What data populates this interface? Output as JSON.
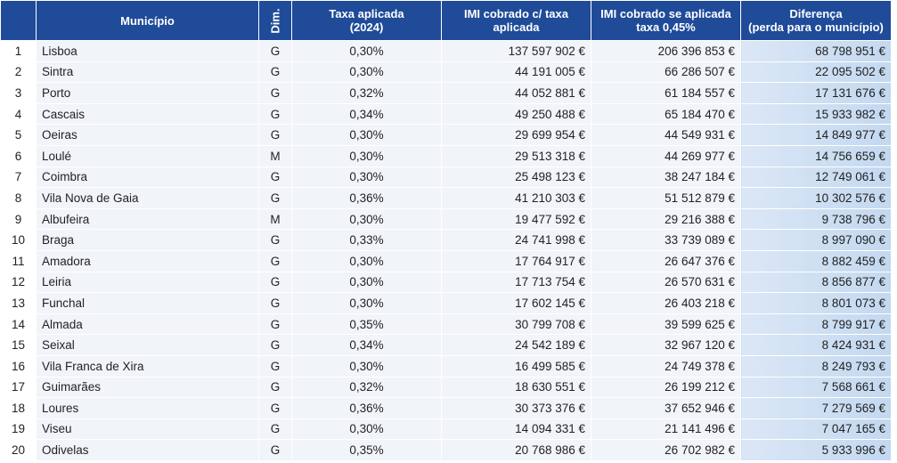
{
  "table": {
    "headers": [
      [
        "Município"
      ],
      [
        "Dim."
      ],
      [
        "Taxa aplicada",
        "(2024)"
      ],
      [
        "IMI cobrado c/ taxa",
        "aplicada"
      ],
      [
        "IMI cobrado se aplicada",
        "taxa 0,45%"
      ],
      [
        "Diferença",
        "(perda para o município)"
      ]
    ],
    "rows": [
      [
        1,
        "Lisboa",
        "G",
        "0,30%",
        "137 597 902 €",
        "206 396 853 €",
        "68 798 951 €"
      ],
      [
        2,
        "Sintra",
        "G",
        "0,30%",
        "44 191 005 €",
        "66 286 507 €",
        "22 095 502 €"
      ],
      [
        3,
        "Porto",
        "G",
        "0,32%",
        "44 052 881 €",
        "61 184 557 €",
        "17 131 676 €"
      ],
      [
        4,
        "Cascais",
        "G",
        "0,34%",
        "49 250 488 €",
        "65 184 470 €",
        "15 933 982 €"
      ],
      [
        5,
        "Oeiras",
        "G",
        "0,30%",
        "29 699 954 €",
        "44 549 931 €",
        "14 849 977 €"
      ],
      [
        6,
        "Loulé",
        "M",
        "0,30%",
        "29 513 318 €",
        "44 269 977 €",
        "14 756 659 €"
      ],
      [
        7,
        "Coimbra",
        "G",
        "0,30%",
        "25 498 123 €",
        "38 247 184 €",
        "12 749 061 €"
      ],
      [
        8,
        "Vila Nova de Gaia",
        "G",
        "0,36%",
        "41 210 303 €",
        "51 512 879 €",
        "10 302 576 €"
      ],
      [
        9,
        "Albufeira",
        "M",
        "0,30%",
        "19 477 592 €",
        "29 216 388 €",
        "9 738 796 €"
      ],
      [
        10,
        "Braga",
        "G",
        "0,33%",
        "24 741 998 €",
        "33 739 089 €",
        "8 997 090 €"
      ],
      [
        11,
        "Amadora",
        "G",
        "0,30%",
        "17 764 917 €",
        "26 647 376 €",
        "8 882 459 €"
      ],
      [
        12,
        "Leiria",
        "G",
        "0,30%",
        "17 713 754 €",
        "26 570 631 €",
        "8 856 877 €"
      ],
      [
        13,
        "Funchal",
        "G",
        "0,30%",
        "17 602 145 €",
        "26 403 218 €",
        "8 801 073 €"
      ],
      [
        14,
        "Almada",
        "G",
        "0,35%",
        "30 799 708 €",
        "39 599 625 €",
        "8 799 917 €"
      ],
      [
        15,
        "Seixal",
        "G",
        "0,34%",
        "24 542 189 €",
        "32 967 120 €",
        "8 424 931 €"
      ],
      [
        16,
        "Vila Franca de Xira",
        "G",
        "0,30%",
        "16 499 585 €",
        "24 749 378 €",
        "8 249 793 €"
      ],
      [
        17,
        "Guimarães",
        "G",
        "0,32%",
        "18 630 551 €",
        "26 199 212 €",
        "7 568 661 €"
      ],
      [
        18,
        "Loures",
        "G",
        "0,36%",
        "30 373 376 €",
        "37 652 946 €",
        "7 279 569 €"
      ],
      [
        19,
        "Viseu",
        "G",
        "0,30%",
        "14 094 331 €",
        "21 141 496 €",
        "7 047 165 €"
      ],
      [
        20,
        "Odivelas",
        "G",
        "0,35%",
        "20 768 986 €",
        "26 702 982 €",
        "5 933 996 €"
      ]
    ]
  }
}
